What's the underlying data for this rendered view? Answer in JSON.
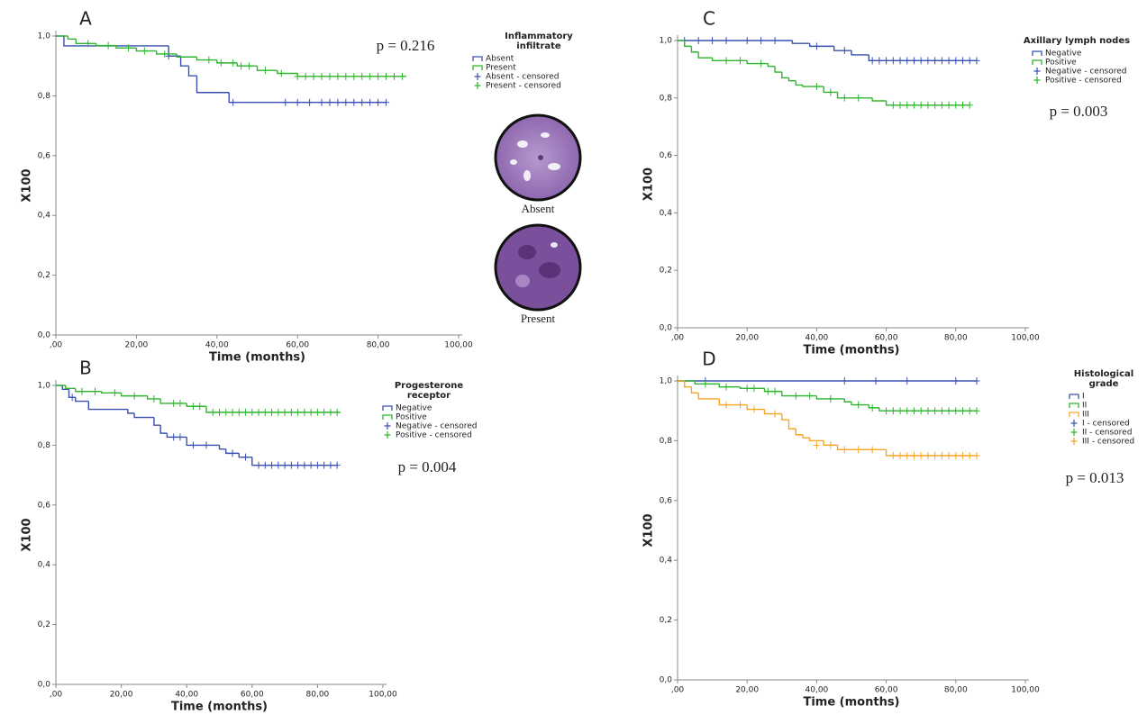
{
  "chart_data": [
    {
      "type": "step",
      "panel": "A",
      "legend_title": [
        "Inflammatory",
        "infiltrate"
      ],
      "p_value": "p = 0.216",
      "xlabel": "Time (months)",
      "ylabel": "X100",
      "image_labels": [
        "Absent",
        "Present"
      ],
      "xlim": [
        0,
        100
      ],
      "ylim": [
        0,
        1
      ],
      "xticks": [
        {
          "value": 0,
          "label": ",00"
        },
        {
          "value": 20,
          "label": "20,00"
        },
        {
          "value": 40,
          "label": "40,00"
        },
        {
          "value": 60,
          "label": "60,00"
        },
        {
          "value": 80,
          "label": "80,00"
        },
        {
          "value": 100,
          "label": "100,00"
        }
      ],
      "yticks": [
        {
          "value": 0,
          "label": "0,0"
        },
        {
          "value": 0.2,
          "label": "0,2"
        },
        {
          "value": 0.4,
          "label": "0,4"
        },
        {
          "value": 0.6,
          "label": "0,6"
        },
        {
          "value": 0.8,
          "label": "0,8"
        },
        {
          "value": 1,
          "label": "1,0"
        }
      ],
      "series": [
        {
          "name": "Absent",
          "censored_name": "Absent - censored",
          "color": "#3a50b0",
          "x": [
            0,
            2,
            28,
            31,
            33,
            35,
            43,
            82
          ],
          "values": [
            1,
            0.967,
            0.933,
            0.9,
            0.867,
            0.811,
            0.778,
            0.778
          ],
          "censored_x": [
            28,
            44,
            57,
            60,
            63,
            66,
            68,
            70,
            72,
            74,
            76,
            78,
            80,
            82
          ],
          "censored_values": [
            0.933,
            0.778,
            0.778,
            0.778,
            0.778,
            0.778,
            0.778,
            0.778,
            0.778,
            0.778,
            0.778,
            0.778,
            0.778,
            0.778
          ]
        },
        {
          "name": "Present",
          "censored_name": "Present - censored",
          "color": "#2fb52f",
          "x": [
            0,
            3,
            5,
            10,
            15,
            20,
            25,
            30,
            35,
            40,
            45,
            50,
            55,
            60,
            87
          ],
          "values": [
            1,
            0.99,
            0.975,
            0.968,
            0.96,
            0.95,
            0.94,
            0.93,
            0.92,
            0.91,
            0.9,
            0.885,
            0.875,
            0.865,
            0.865
          ],
          "censored_x": [
            8,
            13,
            18,
            22,
            27,
            38,
            41,
            44,
            46,
            48,
            52,
            56,
            60,
            62,
            64,
            66,
            68,
            70,
            72,
            74,
            76,
            78,
            80,
            82,
            84,
            86
          ],
          "censored_values": [
            0.975,
            0.968,
            0.96,
            0.95,
            0.94,
            0.92,
            0.91,
            0.91,
            0.9,
            0.9,
            0.885,
            0.875,
            0.865,
            0.865,
            0.865,
            0.865,
            0.865,
            0.865,
            0.865,
            0.865,
            0.865,
            0.865,
            0.865,
            0.865,
            0.865,
            0.865
          ]
        }
      ]
    },
    {
      "type": "step",
      "panel": "B",
      "legend_title": [
        "Progesterone",
        "receptor"
      ],
      "p_value": "p = 0.004",
      "xlabel": "Time (months)",
      "ylabel": "X100",
      "xlim": [
        0,
        100
      ],
      "ylim": [
        0,
        1
      ],
      "xticks": [
        {
          "value": 0,
          "label": ",00"
        },
        {
          "value": 20,
          "label": "20,00"
        },
        {
          "value": 40,
          "label": "40,00"
        },
        {
          "value": 60,
          "label": "60,00"
        },
        {
          "value": 80,
          "label": "80,00"
        },
        {
          "value": 100,
          "label": "100,00"
        }
      ],
      "yticks": [
        {
          "value": 0,
          "label": "0,0"
        },
        {
          "value": 0.2,
          "label": "0,2"
        },
        {
          "value": 0.4,
          "label": "0,4"
        },
        {
          "value": 0.6,
          "label": "0,6"
        },
        {
          "value": 0.8,
          "label": "0,8"
        },
        {
          "value": 1,
          "label": "1,0"
        }
      ],
      "series": [
        {
          "name": "Negative",
          "censored_name": "Negative - censored",
          "color": "#3a50b0",
          "x": [
            0,
            2,
            4,
            6,
            10,
            22,
            24,
            30,
            32,
            34,
            40,
            50,
            52,
            56,
            60,
            86
          ],
          "values": [
            1,
            0.987,
            0.96,
            0.947,
            0.92,
            0.907,
            0.893,
            0.867,
            0.84,
            0.827,
            0.8,
            0.787,
            0.773,
            0.76,
            0.733,
            0.733
          ],
          "censored_x": [
            5,
            36,
            38,
            42,
            46,
            54,
            58,
            62,
            64,
            66,
            68,
            70,
            72,
            74,
            76,
            78,
            80,
            82,
            84,
            86
          ],
          "censored_values": [
            0.96,
            0.827,
            0.827,
            0.8,
            0.8,
            0.773,
            0.76,
            0.733,
            0.733,
            0.733,
            0.733,
            0.733,
            0.733,
            0.733,
            0.733,
            0.733,
            0.733,
            0.733,
            0.733,
            0.733
          ]
        },
        {
          "name": "Positive",
          "censored_name": "Positive - censored",
          "color": "#2fb52f",
          "x": [
            0,
            3,
            6,
            14,
            20,
            28,
            32,
            40,
            46,
            87
          ],
          "values": [
            1,
            0.99,
            0.98,
            0.975,
            0.965,
            0.955,
            0.94,
            0.93,
            0.91,
            0.91
          ],
          "censored_x": [
            8,
            12,
            18,
            24,
            30,
            36,
            38,
            42,
            44,
            48,
            50,
            52,
            54,
            56,
            58,
            60,
            62,
            64,
            66,
            68,
            70,
            72,
            74,
            76,
            78,
            80,
            82,
            84,
            86
          ],
          "censored_values": [
            0.98,
            0.98,
            0.975,
            0.965,
            0.955,
            0.94,
            0.94,
            0.93,
            0.93,
            0.91,
            0.91,
            0.91,
            0.91,
            0.91,
            0.91,
            0.91,
            0.91,
            0.91,
            0.91,
            0.91,
            0.91,
            0.91,
            0.91,
            0.91,
            0.91,
            0.91,
            0.91,
            0.91,
            0.91
          ]
        }
      ]
    },
    {
      "type": "step",
      "panel": "C",
      "legend_title": [
        "Axillary lymph nodes"
      ],
      "p_value": "p = 0.003",
      "xlabel": "Time (months)",
      "ylabel": "X100",
      "xlim": [
        0,
        100
      ],
      "ylim": [
        0,
        1
      ],
      "xticks": [
        {
          "value": 0,
          "label": ",00"
        },
        {
          "value": 20,
          "label": "20,00"
        },
        {
          "value": 40,
          "label": "40,00"
        },
        {
          "value": 60,
          "label": "60,00"
        },
        {
          "value": 80,
          "label": "80,00"
        },
        {
          "value": 100,
          "label": "100,00"
        }
      ],
      "yticks": [
        {
          "value": 0,
          "label": "0,0"
        },
        {
          "value": 0.2,
          "label": "0,2"
        },
        {
          "value": 0.4,
          "label": "0,4"
        },
        {
          "value": 0.6,
          "label": "0,6"
        },
        {
          "value": 0.8,
          "label": "0,8"
        },
        {
          "value": 1,
          "label": "1,0"
        }
      ],
      "series": [
        {
          "name": "Negative",
          "censored_name": "Negative - censored",
          "color": "#3a50b0",
          "x": [
            0,
            33,
            38,
            45,
            50,
            55,
            86
          ],
          "values": [
            1,
            0.99,
            0.98,
            0.965,
            0.95,
            0.93,
            0.93
          ],
          "censored_x": [
            2,
            6,
            10,
            14,
            20,
            24,
            28,
            40,
            48,
            56,
            58,
            60,
            62,
            64,
            66,
            68,
            70,
            72,
            74,
            76,
            78,
            80,
            82,
            84,
            86
          ],
          "censored_values": [
            1,
            1,
            1,
            1,
            1,
            1,
            1,
            0.98,
            0.965,
            0.93,
            0.93,
            0.93,
            0.93,
            0.93,
            0.93,
            0.93,
            0.93,
            0.93,
            0.93,
            0.93,
            0.93,
            0.93,
            0.93,
            0.93,
            0.93
          ]
        },
        {
          "name": "Positive",
          "censored_name": "Positive - censored",
          "color": "#2fb52f",
          "x": [
            0,
            2,
            4,
            6,
            10,
            20,
            26,
            28,
            30,
            32,
            34,
            36,
            42,
            46,
            56,
            60,
            84
          ],
          "values": [
            1,
            0.98,
            0.96,
            0.94,
            0.93,
            0.92,
            0.91,
            0.89,
            0.87,
            0.86,
            0.845,
            0.84,
            0.82,
            0.8,
            0.79,
            0.775,
            0.775
          ],
          "censored_x": [
            14,
            18,
            24,
            40,
            44,
            48,
            52,
            62,
            64,
            66,
            68,
            70,
            72,
            74,
            76,
            78,
            80,
            82,
            84
          ],
          "censored_values": [
            0.93,
            0.93,
            0.92,
            0.84,
            0.82,
            0.8,
            0.8,
            0.775,
            0.775,
            0.775,
            0.775,
            0.775,
            0.775,
            0.775,
            0.775,
            0.775,
            0.775,
            0.775,
            0.775
          ]
        }
      ]
    },
    {
      "type": "step",
      "panel": "D",
      "legend_title": [
        "Histological",
        "grade"
      ],
      "p_value": "p = 0.013",
      "xlabel": "Time (months)",
      "ylabel": "X100",
      "xlim": [
        0,
        100
      ],
      "ylim": [
        0,
        1
      ],
      "xticks": [
        {
          "value": 0,
          "label": ",00"
        },
        {
          "value": 20,
          "label": "20,00"
        },
        {
          "value": 40,
          "label": "40,00"
        },
        {
          "value": 60,
          "label": "60,00"
        },
        {
          "value": 80,
          "label": "80,00"
        },
        {
          "value": 100,
          "label": "100,00"
        }
      ],
      "yticks": [
        {
          "value": 0,
          "label": "0,0"
        },
        {
          "value": 0.2,
          "label": "0,2"
        },
        {
          "value": 0.4,
          "label": "0,4"
        },
        {
          "value": 0.6,
          "label": "0,6"
        },
        {
          "value": 0.8,
          "label": "0,8"
        },
        {
          "value": 1,
          "label": "1,0"
        }
      ],
      "series": [
        {
          "name": "I",
          "censored_name": "I - censored",
          "color": "#3a50b0",
          "x": [
            0,
            86
          ],
          "values": [
            1,
            1
          ],
          "censored_x": [
            8,
            48,
            57,
            66,
            80,
            86
          ],
          "censored_values": [
            1,
            1,
            1,
            1,
            1,
            1
          ]
        },
        {
          "name": "II",
          "censored_name": "II - censored",
          "color": "#2fb52f",
          "x": [
            0,
            5,
            12,
            18,
            25,
            30,
            40,
            48,
            50,
            55,
            58,
            86
          ],
          "values": [
            1,
            0.99,
            0.98,
            0.975,
            0.965,
            0.95,
            0.94,
            0.93,
            0.92,
            0.91,
            0.9,
            0.9
          ],
          "censored_x": [
            8,
            14,
            20,
            22,
            26,
            28,
            34,
            38,
            44,
            52,
            56,
            60,
            62,
            64,
            66,
            68,
            70,
            72,
            74,
            76,
            78,
            80,
            82,
            84,
            86
          ],
          "censored_values": [
            0.99,
            0.98,
            0.975,
            0.975,
            0.965,
            0.965,
            0.95,
            0.95,
            0.94,
            0.92,
            0.91,
            0.9,
            0.9,
            0.9,
            0.9,
            0.9,
            0.9,
            0.9,
            0.9,
            0.9,
            0.9,
            0.9,
            0.9,
            0.9,
            0.9
          ]
        },
        {
          "name": "III",
          "censored_name": "III - censored",
          "color": "#f5a623",
          "x": [
            0,
            2,
            4,
            6,
            12,
            20,
            25,
            30,
            32,
            34,
            36,
            38,
            42,
            46,
            60,
            86
          ],
          "values": [
            1,
            0.98,
            0.96,
            0.94,
            0.92,
            0.905,
            0.89,
            0.87,
            0.84,
            0.82,
            0.81,
            0.8,
            0.785,
            0.77,
            0.75,
            0.75
          ],
          "censored_x": [
            14,
            18,
            22,
            28,
            40,
            44,
            48,
            52,
            56,
            62,
            64,
            66,
            68,
            70,
            72,
            74,
            76,
            78,
            80,
            82,
            84,
            86
          ],
          "censored_values": [
            0.92,
            0.92,
            0.905,
            0.89,
            0.785,
            0.785,
            0.77,
            0.77,
            0.77,
            0.75,
            0.75,
            0.75,
            0.75,
            0.75,
            0.75,
            0.75,
            0.75,
            0.75,
            0.75,
            0.75,
            0.75,
            0.75
          ]
        }
      ]
    }
  ]
}
